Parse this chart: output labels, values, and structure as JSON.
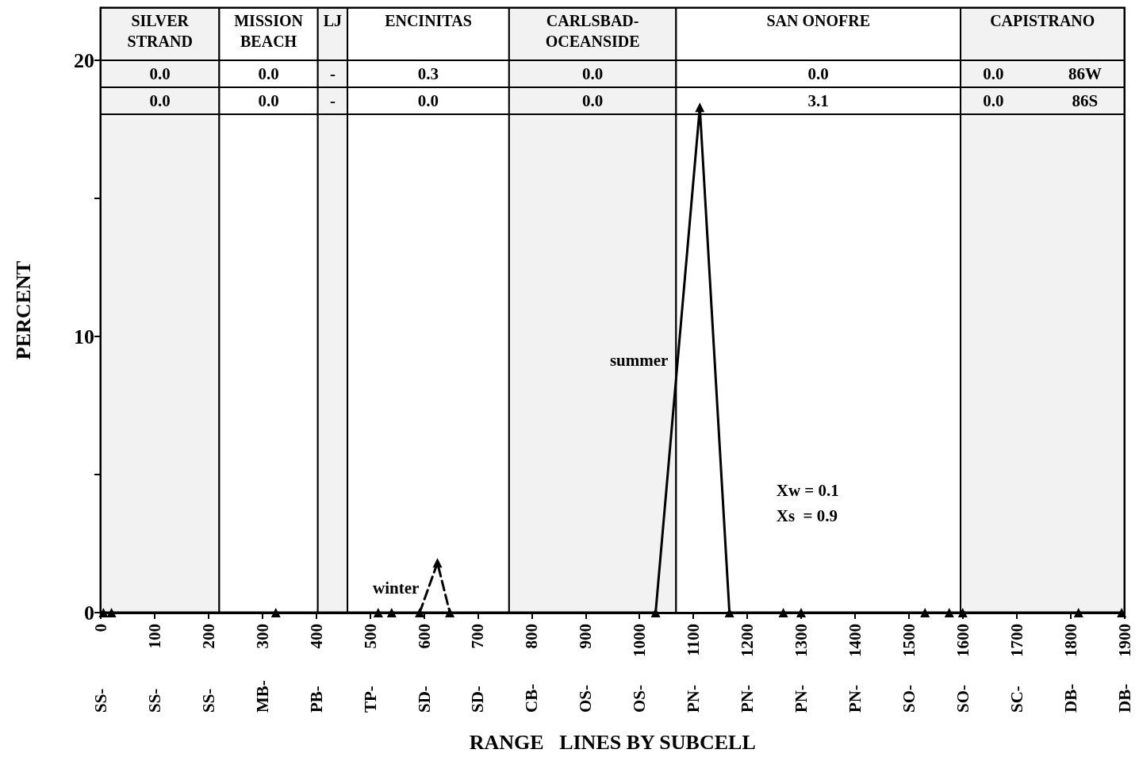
{
  "chart_data": {
    "type": "line",
    "xlabel": "RANGE   LINES BY SUBCELL",
    "ylabel": "PERCENT",
    "xlim": [
      0,
      1900
    ],
    "ylim": [
      0,
      21.9
    ],
    "xticks": [
      0,
      100,
      200,
      300,
      400,
      500,
      600,
      700,
      800,
      900,
      1000,
      1100,
      1200,
      1300,
      1400,
      1500,
      1600,
      1700,
      1800,
      1900
    ],
    "yticks": [
      0,
      {
        "value": 5,
        "label": null
      },
      10,
      {
        "value": 15,
        "label": null
      },
      20
    ],
    "legend": false,
    "marker": "triangle",
    "series": [
      {
        "name": "winter",
        "color": "#000000",
        "line_style": "dashed",
        "x": [
          592,
          625,
          648
        ],
        "values": [
          0,
          1.8,
          0
        ]
      },
      {
        "name": "summer",
        "color": "#000000",
        "line_style": "solid",
        "x": [
          5,
          20,
          325,
          515,
          540,
          1030,
          1112,
          1167,
          1267,
          1300,
          1530,
          1575,
          1600,
          1815,
          1895
        ],
        "values": [
          0,
          0,
          0,
          0,
          0,
          0,
          18.3,
          0,
          0,
          0,
          0,
          0,
          0,
          0,
          0
        ]
      }
    ],
    "bands": [
      {
        "axis": "x",
        "from": 0,
        "to": 220,
        "label": "SILVER\nSTRAND",
        "color": "#f2f2f2"
      },
      {
        "axis": "x",
        "from": 220,
        "to": 403,
        "label": "MISSION\nBEACH",
        "color": "#ffffff"
      },
      {
        "axis": "x",
        "from": 403,
        "to": 458,
        "label": "LJ",
        "color": "#f2f2f2"
      },
      {
        "axis": "x",
        "from": 458,
        "to": 758,
        "label": "ENCINITAS",
        "color": "#ffffff"
      },
      {
        "axis": "x",
        "from": 758,
        "to": 1068,
        "label": "CARLSBAD-\nOCEANSIDE",
        "color": "#f2f2f2"
      },
      {
        "axis": "x",
        "from": 1068,
        "to": 1596,
        "label": "SAN ONOFRE",
        "color": "#ffffff"
      },
      {
        "axis": "x",
        "from": 1596,
        "to": 1900,
        "label": "CAPISTRANO",
        "color": "#f2f2f2"
      }
    ],
    "annotations": [
      "0.0",
      "0.0",
      "-",
      "0.3",
      "0.0",
      "0.0",
      "0.0",
      "86W",
      "0.0",
      "0.0",
      "-",
      "0.0",
      "0.0",
      "3.1",
      "0.0",
      "86S",
      "SS-",
      "SS-",
      "SS-",
      "MB-",
      "PB-",
      "TP-",
      "SD-",
      "SD-",
      "CB-",
      "OS-",
      "OS-",
      "PN-",
      "PN-",
      "PN-",
      "PN-",
      "SO-",
      "SO-",
      "SC-",
      "DB-",
      "DB-",
      "Xw = 0.1",
      "Xs  = 0.9"
    ]
  }
}
